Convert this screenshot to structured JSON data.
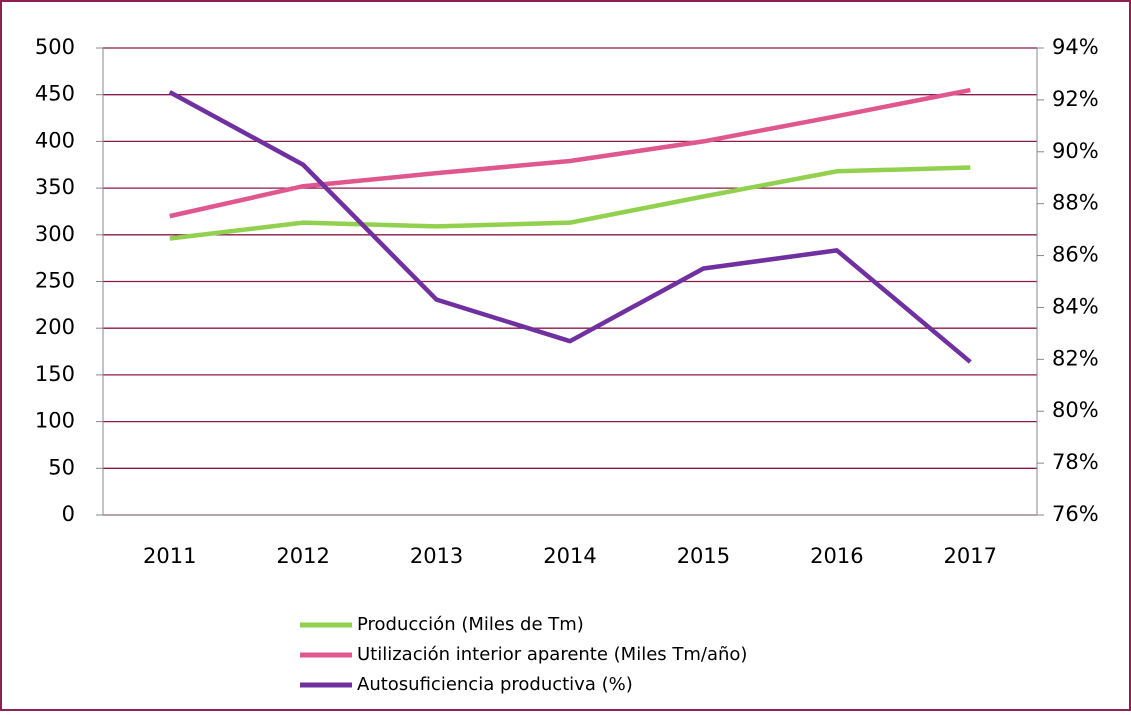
{
  "chart_data": {
    "type": "line",
    "categories": [
      "2011",
      "2012",
      "2013",
      "2014",
      "2015",
      "2016",
      "2017"
    ],
    "series": [
      {
        "name": "Producción (Miles de Tm)",
        "color": "#92d050",
        "values": [
          296,
          313,
          309,
          313,
          341,
          368,
          372
        ]
      },
      {
        "name": "Utilización interior aparente (Miles Tm/año)",
        "color": "#e0578f",
        "values": [
          320,
          352,
          366,
          379,
          400,
          427,
          455
        ]
      },
      {
        "name": "Autosuficiencia productiva (%)",
        "color": "#7030a0",
        "axis": "y2",
        "values": [
          92.3,
          89.5,
          84.3,
          82.7,
          85.5,
          86.2,
          81.9
        ]
      }
    ],
    "ylim": [
      0,
      500
    ],
    "yticks": [
      0,
      50,
      100,
      150,
      200,
      250,
      300,
      350,
      400,
      450,
      500
    ],
    "y2lim": [
      76,
      94
    ],
    "y2ticks": [
      {
        "value": 76,
        "label": "76%"
      },
      {
        "value": 78,
        "label": "78%"
      },
      {
        "value": 80,
        "label": "80%"
      },
      {
        "value": 82,
        "label": "82%"
      },
      {
        "value": 84,
        "label": "84%"
      },
      {
        "value": 86,
        "label": "86%"
      },
      {
        "value": 88,
        "label": "88%"
      },
      {
        "value": 90,
        "label": "90%"
      },
      {
        "value": 92,
        "label": "92%"
      },
      {
        "value": 94,
        "label": "94%"
      }
    ],
    "grid": true,
    "legend": "bottom"
  }
}
